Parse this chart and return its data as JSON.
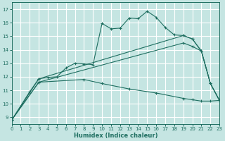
{
  "xlabel": "Humidex (Indice chaleur)",
  "bg_color": "#c5e5e2",
  "grid_color": "#ffffff",
  "line_color": "#1e6e60",
  "xlim": [
    0,
    23
  ],
  "ylim": [
    8.5,
    17.5
  ],
  "xticks": [
    0,
    1,
    2,
    3,
    4,
    5,
    6,
    7,
    8,
    9,
    10,
    11,
    12,
    13,
    14,
    15,
    16,
    17,
    18,
    19,
    20,
    21,
    22,
    23
  ],
  "yticks": [
    9,
    10,
    11,
    12,
    13,
    14,
    15,
    16,
    17
  ],
  "curve1_x": [
    0,
    2,
    3,
    4,
    5,
    6,
    7,
    8,
    9,
    10,
    11,
    12,
    13,
    14,
    15,
    16,
    17,
    18,
    19,
    20,
    21,
    22,
    23
  ],
  "curve1_y": [
    8.8,
    10.9,
    11.85,
    11.95,
    12.0,
    12.65,
    13.0,
    12.95,
    12.9,
    15.95,
    15.55,
    15.6,
    16.35,
    16.3,
    16.85,
    16.4,
    15.65,
    15.1,
    15.05,
    14.8,
    13.9,
    11.5,
    10.25
  ],
  "line2_x": [
    0,
    3,
    19,
    20,
    21,
    22,
    23
  ],
  "line2_y": [
    8.8,
    11.85,
    15.05,
    14.8,
    13.9,
    11.5,
    10.25
  ],
  "line3_x": [
    0,
    3,
    19,
    20,
    21,
    22,
    23
  ],
  "line3_y": [
    8.8,
    11.6,
    14.5,
    14.25,
    13.9,
    11.5,
    10.25
  ],
  "line4_x": [
    0,
    3,
    8,
    10,
    13,
    16,
    19,
    20,
    21,
    22,
    23
  ],
  "line4_y": [
    8.8,
    11.6,
    11.8,
    11.5,
    11.1,
    10.8,
    10.4,
    10.3,
    10.2,
    10.2,
    10.25
  ]
}
